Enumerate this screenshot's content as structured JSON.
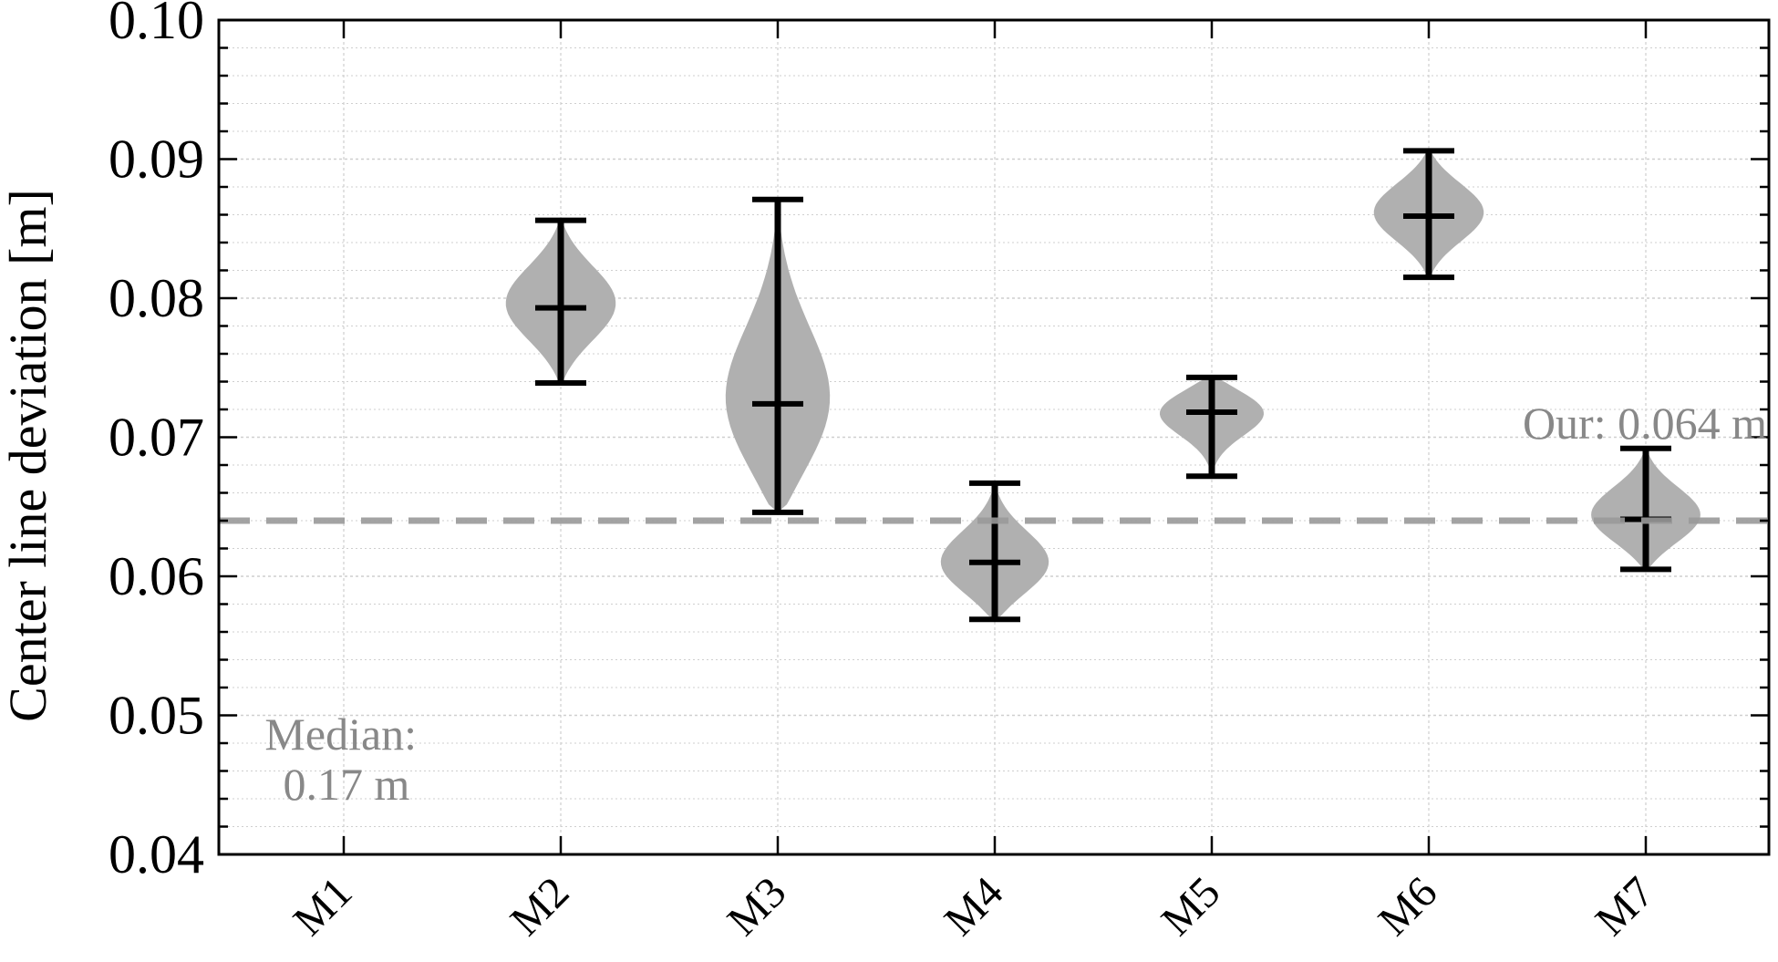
{
  "chart_data": {
    "type": "violin",
    "categories": [
      "M1",
      "M2",
      "M3",
      "M4",
      "M5",
      "M6",
      "M7"
    ],
    "ylabel": "Center line deviation [m]",
    "xlabel": "",
    "ylim": [
      0.04,
      0.1
    ],
    "y_ticks": [
      "0.04",
      "0.05",
      "0.06",
      "0.07",
      "0.08",
      "0.09",
      "0.10"
    ],
    "grid": true,
    "reference_line": {
      "value": 0.064,
      "label": "Our: 0.064 m",
      "style": "dashed",
      "color": "#9a9a9a"
    },
    "annotation": {
      "category": "M1",
      "lines": [
        "Median:",
        "0.17 m"
      ]
    },
    "violins": [
      {
        "category": "M2",
        "min": 0.0739,
        "max": 0.0856,
        "median": 0.0793,
        "density_peak": 0.0796
      },
      {
        "category": "M3",
        "min": 0.0646,
        "max": 0.0871,
        "median": 0.0724,
        "density_peak": 0.072
      },
      {
        "category": "M4",
        "min": 0.0569,
        "max": 0.0667,
        "median": 0.061,
        "density_peak": 0.0608
      },
      {
        "category": "M5",
        "min": 0.0672,
        "max": 0.0743,
        "median": 0.0718,
        "density_peak": 0.072
      },
      {
        "category": "M6",
        "min": 0.0815,
        "max": 0.0906,
        "median": 0.0859,
        "density_peak": 0.0862
      },
      {
        "category": "M7",
        "min": 0.0605,
        "max": 0.0692,
        "median": 0.0641,
        "density_peak": 0.0643
      }
    ],
    "colors": {
      "violin_fill": "#b0b0b0",
      "whisker": "#000000",
      "grid": "#cfcfcf"
    }
  }
}
